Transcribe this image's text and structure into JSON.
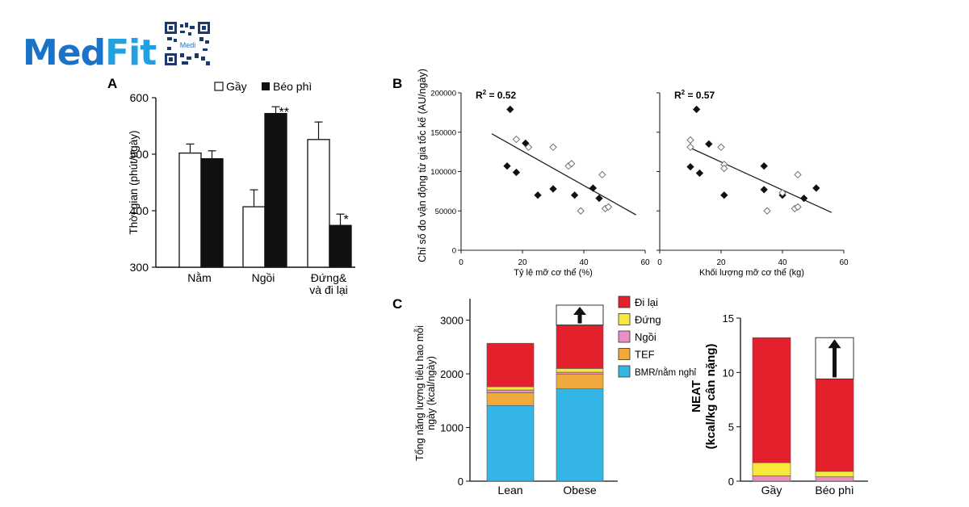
{
  "logo": {
    "brand_a": "Med",
    "brand_b": "Fit",
    "qr_label": "Medi"
  },
  "colors": {
    "walk": "#e3202b",
    "stand": "#f7e93c",
    "sit": "#e98fc2",
    "tef": "#f1a93b",
    "bmr": "#33b6e6",
    "black": "#111111",
    "white": "#ffffff"
  },
  "chart_data": [
    {
      "panel": "A",
      "type": "bar",
      "legend": [
        "Gầy",
        "Béo phì"
      ],
      "ylabel": "Thời gian (phút/ngày)",
      "ylim": [
        300,
        600
      ],
      "yticks": [
        "300",
        "400",
        "500",
        "600"
      ],
      "categories": [
        "Nằm",
        "Ngồi",
        "Đứng& và đi lại"
      ],
      "category_lines": [
        [
          "Nằm"
        ],
        [
          "Ngồi"
        ],
        [
          "Đứng&",
          "và đi lại"
        ]
      ],
      "series": [
        {
          "name": "Gầy",
          "values": [
            502,
            407,
            526
          ],
          "err": [
            16,
            30,
            31
          ]
        },
        {
          "name": "Béo phì",
          "values": [
            492,
            572,
            374
          ],
          "err": [
            14,
            12,
            20
          ]
        }
      ],
      "annotations": [
        "",
        "**",
        "*"
      ]
    },
    {
      "panel": "B",
      "type": "scatter",
      "ylabel": "Chỉ số đo vận động từ gia tốc kế (AU/ngày)",
      "yticks": [
        "0",
        "50000",
        "100000",
        "150000",
        "200000"
      ],
      "plots": [
        {
          "xlabel": "Tỷ lệ mỡ cơ thể (%)",
          "r2_label": "R",
          "r2_value": " = 0.52",
          "xlim": [
            0,
            60
          ],
          "ylim": [
            0,
            200000
          ],
          "xticks": [
            "0",
            "20",
            "40",
            "60"
          ],
          "fit": [
            [
              10,
              148000
            ],
            [
              57,
              45000
            ]
          ],
          "points": [
            {
              "x": 16,
              "y": 179000,
              "filled": true
            },
            {
              "x": 18,
              "y": 141000,
              "filled": false
            },
            {
              "x": 21,
              "y": 136000,
              "filled": true
            },
            {
              "x": 22,
              "y": 131000,
              "filled": false
            },
            {
              "x": 15,
              "y": 107000,
              "filled": true
            },
            {
              "x": 18,
              "y": 99000,
              "filled": true
            },
            {
              "x": 30,
              "y": 131000,
              "filled": false
            },
            {
              "x": 35,
              "y": 107000,
              "filled": false
            },
            {
              "x": 36,
              "y": 110000,
              "filled": false
            },
            {
              "x": 25,
              "y": 70000,
              "filled": true
            },
            {
              "x": 30,
              "y": 78000,
              "filled": true
            },
            {
              "x": 37,
              "y": 70000,
              "filled": true
            },
            {
              "x": 43,
              "y": 79000,
              "filled": true
            },
            {
              "x": 45,
              "y": 66000,
              "filled": true
            },
            {
              "x": 46,
              "y": 96000,
              "filled": false
            },
            {
              "x": 39,
              "y": 50000,
              "filled": false
            },
            {
              "x": 47,
              "y": 53000,
              "filled": false
            },
            {
              "x": 48,
              "y": 55000,
              "filled": false
            }
          ]
        },
        {
          "xlabel": "Khối lượng mỡ cơ thể (kg)",
          "r2_label": "R",
          "r2_value": " = 0.57",
          "xlim": [
            0,
            60
          ],
          "ylim": [
            0,
            200000
          ],
          "xticks": [
            "0",
            "20",
            "40",
            "60"
          ],
          "fit": [
            [
              10,
              130000
            ],
            [
              56,
              48000
            ]
          ],
          "points": [
            {
              "x": 12,
              "y": 179000,
              "filled": true
            },
            {
              "x": 10,
              "y": 140000,
              "filled": false
            },
            {
              "x": 10,
              "y": 131000,
              "filled": false
            },
            {
              "x": 16,
              "y": 135000,
              "filled": true
            },
            {
              "x": 20,
              "y": 131000,
              "filled": false
            },
            {
              "x": 21,
              "y": 109000,
              "filled": false
            },
            {
              "x": 21,
              "y": 104000,
              "filled": false
            },
            {
              "x": 10,
              "y": 106000,
              "filled": true
            },
            {
              "x": 13,
              "y": 98000,
              "filled": true
            },
            {
              "x": 21,
              "y": 70000,
              "filled": true
            },
            {
              "x": 34,
              "y": 107000,
              "filled": true
            },
            {
              "x": 34,
              "y": 77000,
              "filled": true
            },
            {
              "x": 40,
              "y": 70000,
              "filled": true
            },
            {
              "x": 40,
              "y": 73000,
              "filled": false
            },
            {
              "x": 47,
              "y": 66000,
              "filled": true
            },
            {
              "x": 51,
              "y": 79000,
              "filled": true
            },
            {
              "x": 45,
              "y": 96000,
              "filled": false
            },
            {
              "x": 35,
              "y": 50000,
              "filled": false
            },
            {
              "x": 44,
              "y": 53000,
              "filled": false
            },
            {
              "x": 45,
              "y": 55000,
              "filled": false
            }
          ]
        }
      ]
    },
    {
      "panel": "C",
      "type": "bar",
      "subtype": "stacked",
      "ylabel": "Tổng năng lượng tiêu hao mỗi ngày (kcal/ngày)",
      "ylabel_lines": [
        "Tổng năng lượng tiêu hao mỗi",
        "ngày (kcal/ngày)"
      ],
      "ylim": [
        0,
        3400
      ],
      "yticks": [
        0,
        1000,
        2000,
        3000
      ],
      "categories": [
        "Lean",
        "Obese"
      ],
      "series": [
        {
          "name": "BMR/nằm nghỉ",
          "key": "bmr",
          "values": [
            1410,
            1720
          ]
        },
        {
          "name": "TEF",
          "key": "tef",
          "values": [
            240,
            270
          ]
        },
        {
          "name": "Ngồi",
          "key": "sit",
          "values": [
            50,
            40
          ]
        },
        {
          "name": "Đứng",
          "key": "stand",
          "values": [
            60,
            70
          ]
        },
        {
          "name": "Đi lại",
          "key": "walk",
          "values": [
            810,
            810
          ]
        }
      ],
      "gap_top": 3280,
      "legend": [
        "Đi lại",
        "Đứng",
        "Ngồi",
        "TEF",
        "BMR/nằm nghỉ"
      ]
    },
    {
      "panel": "C2",
      "type": "bar",
      "subtype": "stacked",
      "ylabel_lines": [
        "NEAT",
        "(kcal/kg cân nặng)"
      ],
      "ylim": [
        0,
        15
      ],
      "yticks": [
        0,
        5,
        10,
        15
      ],
      "categories": [
        "Gầy",
        "Béo phì"
      ],
      "series": [
        {
          "name": "Ngồi",
          "key": "sit",
          "values": [
            0.5,
            0.4
          ]
        },
        {
          "name": "Đứng",
          "key": "stand",
          "values": [
            1.2,
            0.5
          ]
        },
        {
          "name": "Đi lại",
          "key": "walk",
          "values": [
            11.5,
            8.5
          ]
        }
      ],
      "gap_top": 13.2
    }
  ]
}
